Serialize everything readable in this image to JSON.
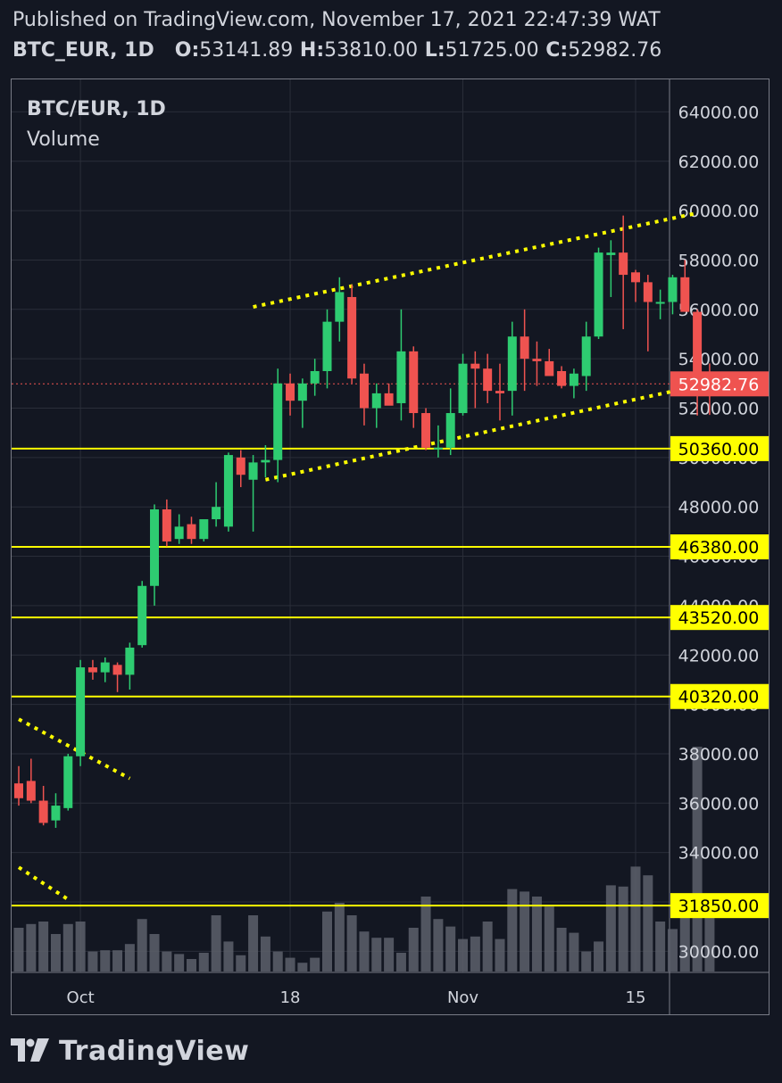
{
  "header": {
    "published": "Published on TradingView.com, November 17, 2021 22:47:39 WAT",
    "symbol": "BTC_EUR, 1D",
    "o_label": "O:",
    "o_value": "53141.89",
    "h_label": "H:",
    "h_value": "53810.00",
    "l_label": "L:",
    "l_value": "51725.00",
    "c_label": "C:",
    "c_value": "52982.76"
  },
  "legend": {
    "symbol": "BTC/EUR, 1D",
    "indicator": "Volume"
  },
  "logo": {
    "text": "TradingView"
  },
  "colors": {
    "background": "#131722",
    "grid": "#2a2e39",
    "up": "#26a69a",
    "up_bright": "#2ecc71",
    "down": "#ef5350",
    "volume": "#5d606b",
    "level": "#ffff00",
    "text": "#d1d4dc",
    "border": "#787b86"
  },
  "chart_data": {
    "type": "candlestick",
    "symbol": "BTC/EUR",
    "interval": "1D",
    "yaxis": {
      "ticks": [
        30000,
        32000,
        34000,
        36000,
        38000,
        40000,
        42000,
        44000,
        46000,
        48000,
        50000,
        52000,
        54000,
        56000,
        58000,
        60000,
        62000,
        64000
      ],
      "range": [
        29000,
        65500
      ],
      "decimals": 2
    },
    "xaxis": {
      "start": "2021-09-26",
      "end": "2021-11-20",
      "labels": [
        {
          "date": "2021-10-01",
          "text": "Oct"
        },
        {
          "date": "2021-10-18",
          "text": "18"
        },
        {
          "date": "2021-11-01",
          "text": "Nov"
        },
        {
          "date": "2021-11-15",
          "text": "15"
        }
      ]
    },
    "last_price": {
      "value": 52982.76,
      "label": "52982.76"
    },
    "horizontal_levels": [
      {
        "value": 50360,
        "label": "50360.00"
      },
      {
        "value": 46380,
        "label": "46380.00"
      },
      {
        "value": 43520,
        "label": "43520.00"
      },
      {
        "value": 40320,
        "label": "40320.00"
      },
      {
        "value": 31850,
        "label": "31850.00"
      }
    ],
    "trendlines": [
      {
        "from": [
          "2021-10-16",
          49100
        ],
        "to": [
          "2021-11-20",
          52900
        ]
      },
      {
        "from": [
          "2021-10-15",
          56100
        ],
        "to": [
          "2021-11-20",
          59900
        ]
      },
      {
        "from": [
          "2021-09-26",
          39400
        ],
        "to": [
          "2021-10-05",
          37000
        ]
      },
      {
        "from": [
          "2021-09-26",
          33400
        ],
        "to": [
          "2021-09-30",
          32100
        ]
      }
    ],
    "candles": [
      {
        "d": "2021-09-26",
        "o": 36800,
        "h": 37500,
        "l": 35900,
        "c": 36200,
        "v": 0.35
      },
      {
        "d": "2021-09-27",
        "o": 36900,
        "h": 37800,
        "l": 36000,
        "c": 36100,
        "v": 0.38
      },
      {
        "d": "2021-09-28",
        "o": 36100,
        "h": 36700,
        "l": 35100,
        "c": 35200,
        "v": 0.4
      },
      {
        "d": "2021-09-29",
        "o": 35300,
        "h": 36400,
        "l": 35000,
        "c": 35900,
        "v": 0.3
      },
      {
        "d": "2021-09-30",
        "o": 35800,
        "h": 38000,
        "l": 35700,
        "c": 37900,
        "v": 0.38
      },
      {
        "d": "2021-10-01",
        "o": 37900,
        "h": 41800,
        "l": 37500,
        "c": 41500,
        "v": 0.4
      },
      {
        "d": "2021-10-02",
        "o": 41500,
        "h": 41800,
        "l": 41000,
        "c": 41300,
        "v": 0.16
      },
      {
        "d": "2021-10-03",
        "o": 41300,
        "h": 41900,
        "l": 40900,
        "c": 41700,
        "v": 0.17
      },
      {
        "d": "2021-10-04",
        "o": 41600,
        "h": 41700,
        "l": 40500,
        "c": 41200,
        "v": 0.17
      },
      {
        "d": "2021-10-05",
        "o": 41200,
        "h": 42500,
        "l": 40600,
        "c": 42300,
        "v": 0.22
      },
      {
        "d": "2021-10-06",
        "o": 42400,
        "h": 45000,
        "l": 42300,
        "c": 44800,
        "v": 0.42
      },
      {
        "d": "2021-10-07",
        "o": 44800,
        "h": 48100,
        "l": 44000,
        "c": 47900,
        "v": 0.3
      },
      {
        "d": "2021-10-08",
        "o": 47900,
        "h": 48300,
        "l": 46400,
        "c": 46600,
        "v": 0.16
      },
      {
        "d": "2021-10-09",
        "o": 46700,
        "h": 47700,
        "l": 46500,
        "c": 47200,
        "v": 0.14
      },
      {
        "d": "2021-10-10",
        "o": 47300,
        "h": 47600,
        "l": 46500,
        "c": 46700,
        "v": 0.1
      },
      {
        "d": "2021-10-11",
        "o": 46700,
        "h": 47400,
        "l": 46600,
        "c": 47500,
        "v": 0.15
      },
      {
        "d": "2021-10-12",
        "o": 47500,
        "h": 49000,
        "l": 47200,
        "c": 48000,
        "v": 0.45
      },
      {
        "d": "2021-10-13",
        "o": 47200,
        "h": 50200,
        "l": 47000,
        "c": 50100,
        "v": 0.24
      },
      {
        "d": "2021-10-14",
        "o": 50000,
        "h": 50300,
        "l": 48800,
        "c": 49300,
        "v": 0.13
      },
      {
        "d": "2021-10-15",
        "o": 49100,
        "h": 50100,
        "l": 47000,
        "c": 49800,
        "v": 0.45
      },
      {
        "d": "2021-10-16",
        "o": 49800,
        "h": 50500,
        "l": 49200,
        "c": 49900,
        "v": 0.28
      },
      {
        "d": "2021-10-17",
        "o": 49900,
        "h": 53600,
        "l": 49000,
        "c": 53000,
        "v": 0.16
      },
      {
        "d": "2021-10-18",
        "o": 53000,
        "h": 53400,
        "l": 51700,
        "c": 52300,
        "v": 0.11
      },
      {
        "d": "2021-10-19",
        "o": 52300,
        "h": 53200,
        "l": 51200,
        "c": 53000,
        "v": 0.07
      },
      {
        "d": "2021-10-20",
        "o": 53000,
        "h": 54000,
        "l": 52500,
        "c": 53500,
        "v": 0.11
      },
      {
        "d": "2021-10-21",
        "o": 53500,
        "h": 56000,
        "l": 52800,
        "c": 55500,
        "v": 0.48
      },
      {
        "d": "2021-10-22",
        "o": 55500,
        "h": 57300,
        "l": 54700,
        "c": 56700,
        "v": 0.55
      },
      {
        "d": "2021-10-23",
        "o": 56500,
        "h": 57000,
        "l": 53000,
        "c": 53200,
        "v": 0.45
      },
      {
        "d": "2021-10-24",
        "o": 53400,
        "h": 53800,
        "l": 51300,
        "c": 52000,
        "v": 0.32
      },
      {
        "d": "2021-10-25",
        "o": 52000,
        "h": 53000,
        "l": 51200,
        "c": 52600,
        "v": 0.27
      },
      {
        "d": "2021-10-26",
        "o": 52600,
        "h": 53000,
        "l": 52200,
        "c": 52100,
        "v": 0.27
      },
      {
        "d": "2021-10-27",
        "o": 52200,
        "h": 56000,
        "l": 51500,
        "c": 54300,
        "v": 0.15
      },
      {
        "d": "2021-10-28",
        "o": 54300,
        "h": 54500,
        "l": 51200,
        "c": 51800,
        "v": 0.35
      },
      {
        "d": "2021-10-29",
        "o": 51800,
        "h": 52000,
        "l": 50300,
        "c": 50400,
        "v": 0.6
      },
      {
        "d": "2021-10-30",
        "o": 50400,
        "h": 51300,
        "l": 50000,
        "c": 50400,
        "v": 0.42
      },
      {
        "d": "2021-10-31",
        "o": 50400,
        "h": 52800,
        "l": 50100,
        "c": 51800,
        "v": 0.36
      },
      {
        "d": "2021-11-01",
        "o": 51800,
        "h": 54200,
        "l": 51700,
        "c": 53800,
        "v": 0.26
      },
      {
        "d": "2021-11-02",
        "o": 53800,
        "h": 54300,
        "l": 52000,
        "c": 53600,
        "v": 0.28
      },
      {
        "d": "2021-11-03",
        "o": 53600,
        "h": 54200,
        "l": 52200,
        "c": 52700,
        "v": 0.4
      },
      {
        "d": "2021-11-04",
        "o": 52700,
        "h": 53800,
        "l": 51500,
        "c": 52600,
        "v": 0.26
      },
      {
        "d": "2021-11-05",
        "o": 52700,
        "h": 55500,
        "l": 51700,
        "c": 54900,
        "v": 0.66
      },
      {
        "d": "2021-11-06",
        "o": 54900,
        "h": 56000,
        "l": 52700,
        "c": 54000,
        "v": 0.64
      },
      {
        "d": "2021-11-07",
        "o": 54000,
        "h": 54700,
        "l": 52900,
        "c": 53900,
        "v": 0.6
      },
      {
        "d": "2021-11-08",
        "o": 53900,
        "h": 54400,
        "l": 53400,
        "c": 53300,
        "v": 0.52
      },
      {
        "d": "2021-11-09",
        "o": 53500,
        "h": 53700,
        "l": 52800,
        "c": 52900,
        "v": 0.35
      },
      {
        "d": "2021-11-10",
        "o": 52900,
        "h": 53600,
        "l": 52400,
        "c": 53400,
        "v": 0.31
      },
      {
        "d": "2021-11-11",
        "o": 53300,
        "h": 55500,
        "l": 52700,
        "c": 54900,
        "v": 0.16
      },
      {
        "d": "2021-11-12",
        "o": 54900,
        "h": 58500,
        "l": 54800,
        "c": 58300,
        "v": 0.24
      },
      {
        "d": "2021-11-13",
        "o": 58200,
        "h": 58800,
        "l": 56500,
        "c": 58300,
        "v": 0.69
      },
      {
        "d": "2021-11-14",
        "o": 58300,
        "h": 59800,
        "l": 55200,
        "c": 57400,
        "v": 0.68
      },
      {
        "d": "2021-11-15",
        "o": 57500,
        "h": 57600,
        "l": 56300,
        "c": 57100,
        "v": 0.84
      },
      {
        "d": "2021-11-16",
        "o": 57100,
        "h": 57400,
        "l": 54300,
        "c": 56300,
        "v": 0.77
      },
      {
        "d": "2021-11-17",
        "o": 56300,
        "h": 56800,
        "l": 55600,
        "c": 56300,
        "v": 0.4
      },
      {
        "d": "2021-11-18",
        "o": 56300,
        "h": 57400,
        "l": 55800,
        "c": 57300,
        "v": 0.34
      },
      {
        "d": "2021-11-19",
        "o": 57300,
        "h": 58000,
        "l": 55900,
        "c": 55900,
        "v": 0.45
      },
      {
        "d": "2021-11-20",
        "o": 55900,
        "h": 56000,
        "l": 51700,
        "c": 53200,
        "v": 1.8
      },
      {
        "d": "2021-11-21",
        "o": 53141.89,
        "h": 53810.0,
        "l": 51725.0,
        "c": 52982.76,
        "v": 0.5
      }
    ]
  }
}
